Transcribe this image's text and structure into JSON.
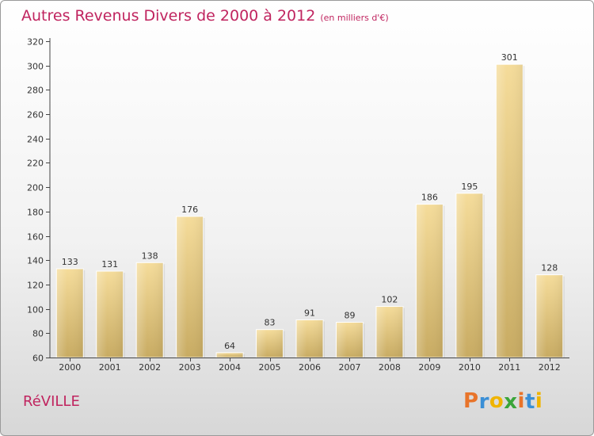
{
  "title": "Autres Revenus Divers de 2000 à 2012",
  "unit_note": "(en milliers d'€)",
  "commune": "RéVILLE",
  "logo": {
    "letters": [
      "P",
      "r",
      "o",
      "x",
      "i",
      "t",
      "i"
    ],
    "colors": [
      "#e8742a",
      "#3a8fd6",
      "#f0b400",
      "#3aa53a",
      "#e8742a",
      "#3a8fd6",
      "#f0b400"
    ]
  },
  "colors": {
    "title": "#c0245f",
    "bar_light": "#f5dc9a",
    "bar_dark": "#c8ab62",
    "axis": "#444444"
  },
  "chart_data": {
    "type": "bar",
    "categories": [
      "2000",
      "2001",
      "2002",
      "2003",
      "2004",
      "2005",
      "2006",
      "2007",
      "2008",
      "2009",
      "2010",
      "2011",
      "2012"
    ],
    "values": [
      133,
      131,
      138,
      176,
      64,
      83,
      91,
      89,
      102,
      186,
      195,
      301,
      128
    ],
    "title": "Autres Revenus Divers de 2000 à 2012",
    "subtitle": "(en milliers d'€)",
    "ylim": [
      60,
      320
    ],
    "yticks": [
      60,
      80,
      100,
      120,
      140,
      160,
      180,
      200,
      220,
      240,
      260,
      280,
      300,
      320
    ],
    "grid": false,
    "legend": "none"
  }
}
